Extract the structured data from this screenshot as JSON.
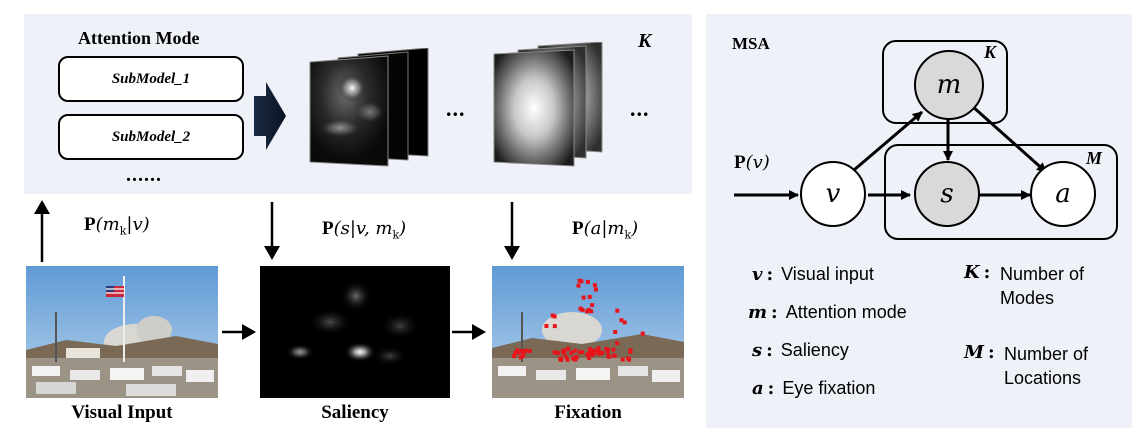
{
  "left_panel": {
    "title": "Attention Mode",
    "submodels": [
      "SubModel_1",
      "SubModel_2"
    ],
    "more": "......",
    "K_label": "K",
    "ellipsis": "...",
    "eq_mode_prefix": "P",
    "eq_mode_body": "(m",
    "eq_mode_sub": "k",
    "eq_mode_tail": "|v)",
    "eq_sal_prefix": "P",
    "eq_sal_body": "(s|v, m",
    "eq_sal_sub": "k",
    "eq_sal_tail": ")",
    "eq_fix_prefix": "P",
    "eq_fix_body": "(a|m",
    "eq_fix_sub": "k",
    "eq_fix_tail": ")",
    "captions": {
      "visual_input": "Visual Input",
      "saliency": "Saliency",
      "fixation": "Fixation"
    }
  },
  "right_panel": {
    "title": "MSA",
    "plate_K": "K",
    "plate_M": "M",
    "nodes": {
      "m": "m",
      "v": "v",
      "s": "s",
      "a": "a"
    },
    "input_prefix": "P",
    "input_body": "(v)",
    "legend": [
      {
        "key": "v",
        "sep": ":",
        "text": "Visual input"
      },
      {
        "key": "m",
        "sep": ":",
        "text": "Attention mode"
      },
      {
        "key": "s",
        "sep": ":",
        "text": "Saliency"
      },
      {
        "key": "a",
        "sep": ":",
        "text": "Eye fixation"
      },
      {
        "key": "K",
        "sep": ":",
        "text_line1": "Number of",
        "text_line2": "Modes"
      },
      {
        "key": "M",
        "sep": ":",
        "text_line1": "Number of",
        "text_line2": "Locations"
      }
    ]
  },
  "colors": {
    "panel_bg": "#eef1f8",
    "node_shaded": "#d9d9d9",
    "fixation_points": "#e8141b",
    "sky": "#8fb8e0"
  }
}
